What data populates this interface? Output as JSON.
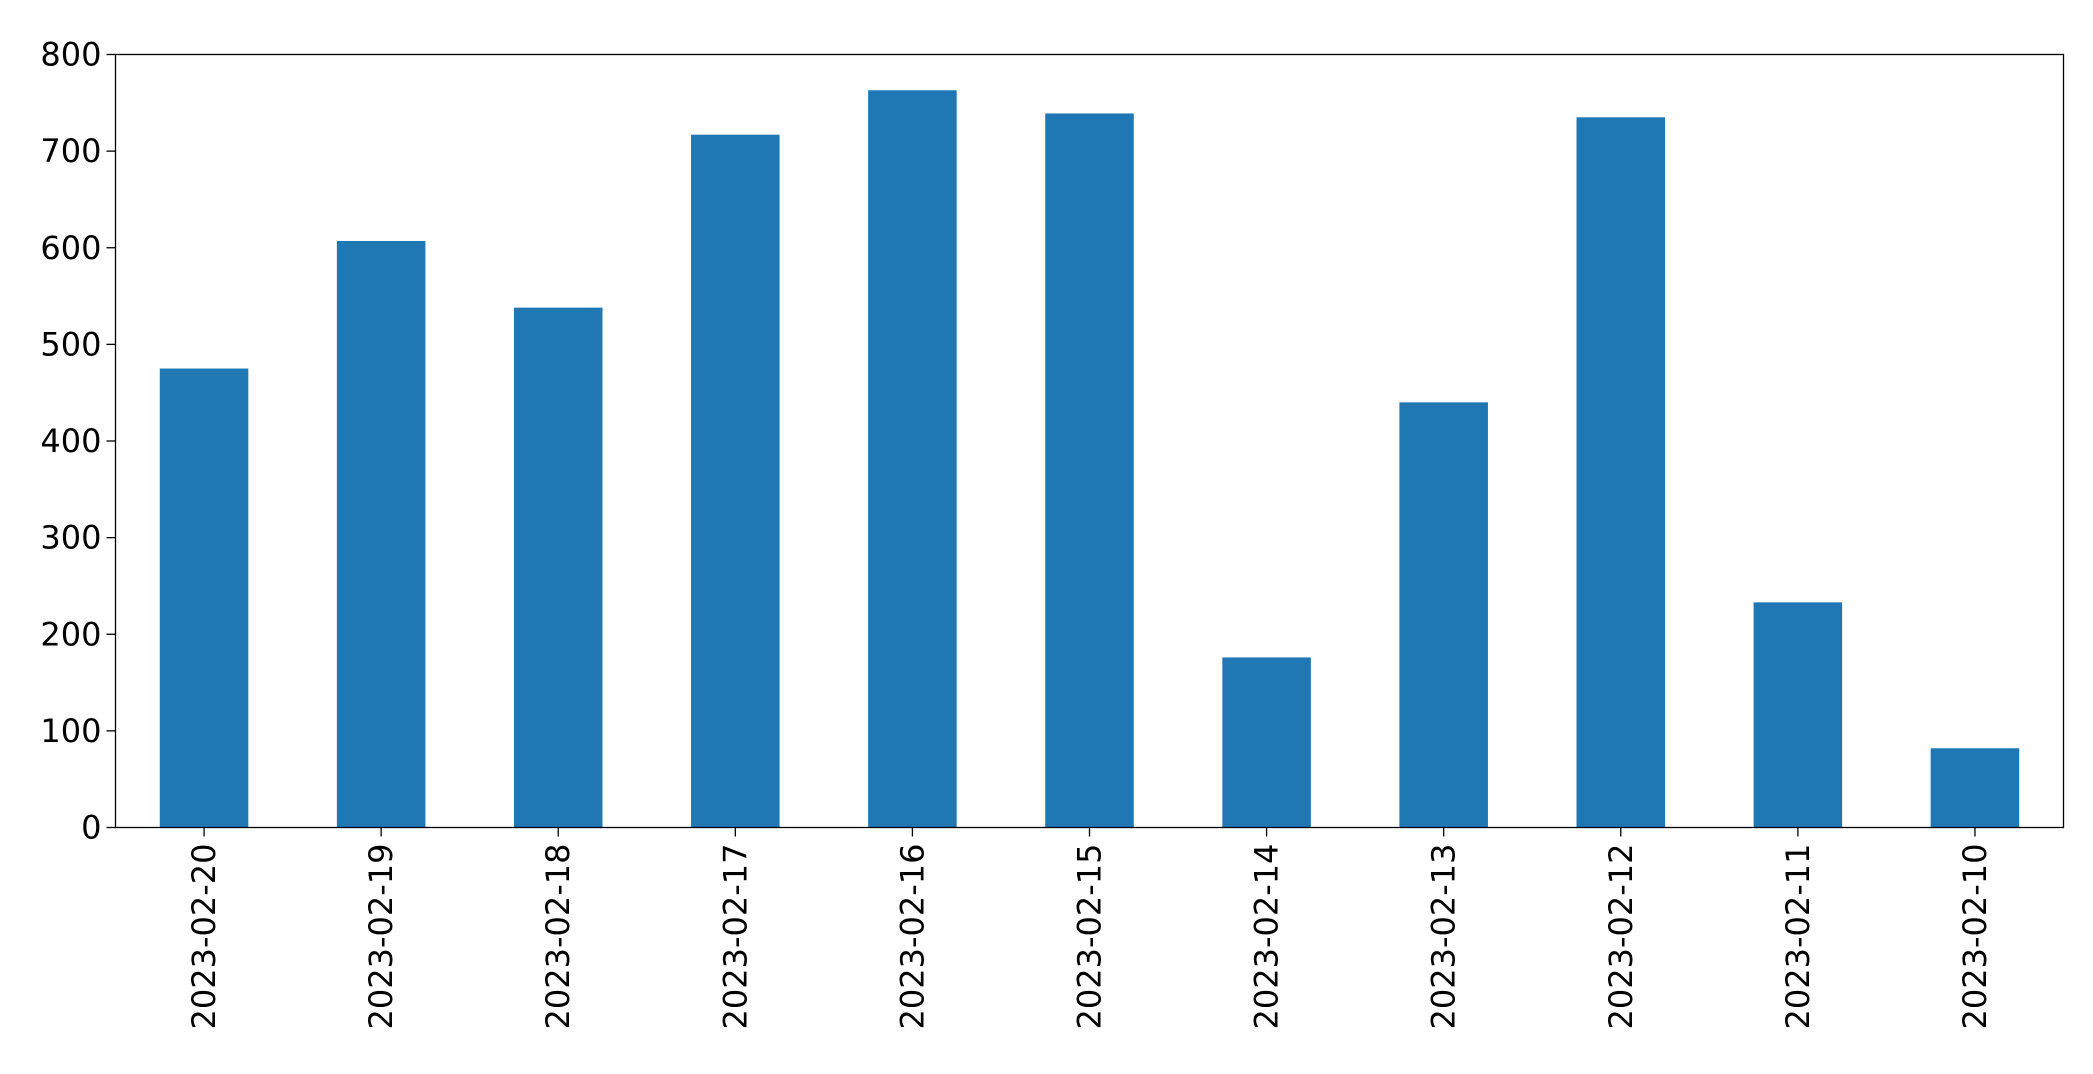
{
  "chart_data": {
    "type": "bar",
    "categories": [
      "2023-02-20",
      "2023-02-19",
      "2023-02-18",
      "2023-02-17",
      "2023-02-16",
      "2023-02-15",
      "2023-02-14",
      "2023-02-13",
      "2023-02-12",
      "2023-02-11",
      "2023-02-10"
    ],
    "values": [
      475,
      607,
      538,
      717,
      763,
      739,
      176,
      440,
      735,
      233,
      82
    ],
    "color": "#1f77b4",
    "ylim": [
      0,
      800
    ],
    "yticks": [
      0,
      100,
      200,
      300,
      400,
      500,
      600,
      700,
      800
    ],
    "grid": false
  }
}
